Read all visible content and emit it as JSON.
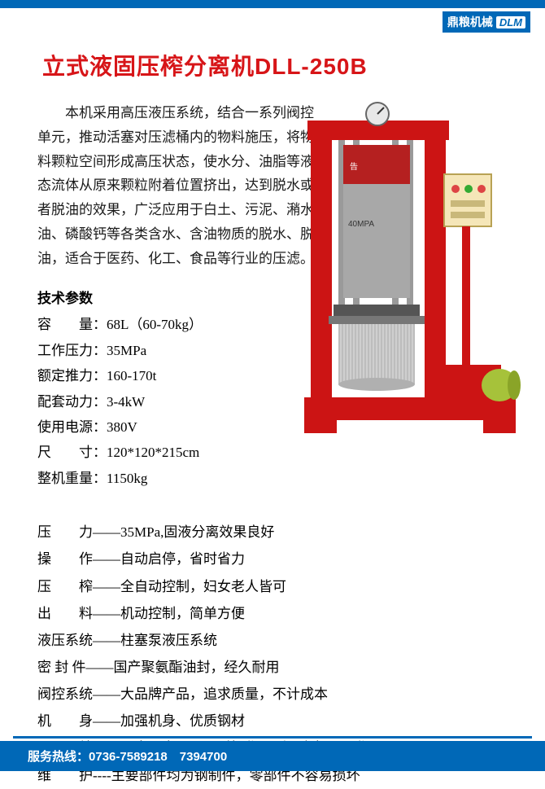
{
  "brand": {
    "name": "鼎粮机械",
    "abbr": "DLM"
  },
  "title": "立式液固压榨分离机DLL-250B",
  "intro": "本机采用高压液压系统，结合一系列阀控单元，推动活塞对压滤桶内的物料施压，将物料颗粒空间形成高压状态，使水分、油脂等液态流体从原来颗粒附着位置挤出，达到脱水或者脱油的效果，广泛应用于白土、污泥、潲水油、磷酸钙等各类含水、含油物质的脱水、脱油，适合于医药、化工、食品等行业的压滤。",
  "specs": {
    "header": "技术参数",
    "rows": [
      {
        "label": "容　　量：",
        "value": "68L（60-70kg）"
      },
      {
        "label": "工作压力：",
        "value": "35MPa"
      },
      {
        "label": "额定推力：",
        "value": "160-170t"
      },
      {
        "label": "配套动力：",
        "value": "3-4kW"
      },
      {
        "label": "使用电源：",
        "value": "380V"
      },
      {
        "label": "尺　　寸：",
        "value": "120*120*215cm"
      },
      {
        "label": "整机重量：",
        "value": "1150kg"
      }
    ]
  },
  "features": [
    {
      "label": "压　　力——",
      "value": "35MPa,固液分离效果良好"
    },
    {
      "label": "操　　作——",
      "value": "自动启停，省时省力"
    },
    {
      "label": "压　　榨——",
      "value": "全自动控制，妇女老人皆可"
    },
    {
      "label": "出　　料——",
      "value": "机动控制，简单方便"
    },
    {
      "label": "液压系统——",
      "value": "柱塞泵液压系统"
    },
    {
      "label": "密 封 件——",
      "value": "国产聚氨酯油封，经久耐用"
    },
    {
      "label": "阀控系统——",
      "value": "大品牌产品，追求质量，不计成本"
    },
    {
      "label": "机　　身——",
      "value": "加强机身、优质钢材"
    },
    {
      "label": "工　　效——",
      "value": "一人至少可以同时操作两到三台机器工作"
    },
    {
      "label": "维　　护----",
      "value": "主要部件均为钢制件，零部件不容易损坏"
    }
  ],
  "footer": {
    "label": "服务热线：",
    "phones": "0736-7589218　7394700"
  },
  "machine": {
    "frame_color": "#d71518",
    "cylinder_color": "#bfbfbf",
    "base_color": "#cc1414",
    "motor_color": "#a6c23a",
    "panel_color": "#f5e6b8",
    "gauge_color": "#e8e8e8",
    "phone_text": "7394700",
    "columns": 4
  },
  "colors": {
    "brand_blue": "#0068b7",
    "title_red": "#d71518",
    "text": "#1a1a1a",
    "bg": "#ffffff"
  }
}
